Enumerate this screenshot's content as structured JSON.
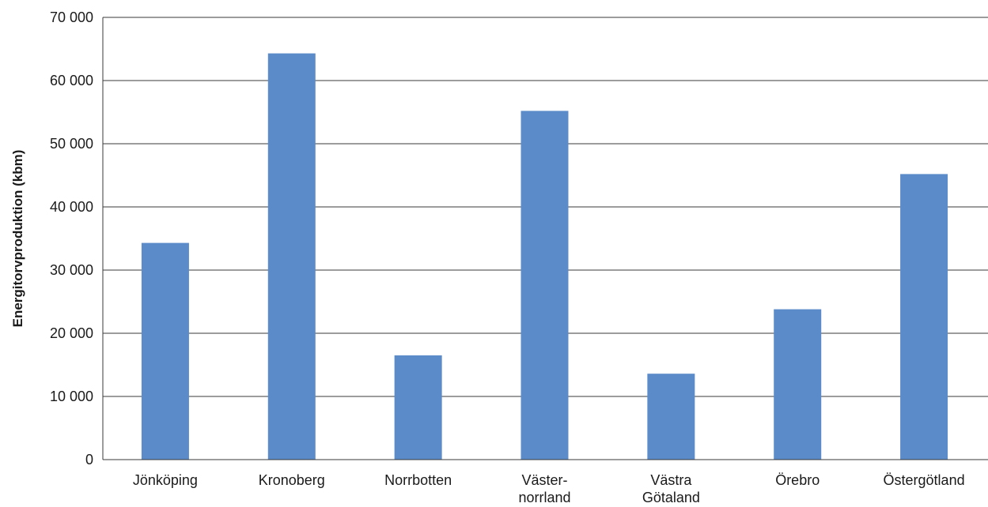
{
  "chart_data": {
    "type": "bar",
    "title": "",
    "xlabel": "",
    "ylabel": "Energitorvproduktion (kbm)",
    "ylim": [
      0,
      70000
    ],
    "yticks": [
      0,
      10000,
      20000,
      30000,
      40000,
      50000,
      60000,
      70000
    ],
    "ytick_labels": [
      "0",
      "10 000",
      "20 000",
      "30 000",
      "40 000",
      "50 000",
      "60 000",
      "70 000"
    ],
    "grid": true,
    "bar_color": "#5b8cc9",
    "categories": [
      [
        "Jönköping"
      ],
      [
        "Kronoberg"
      ],
      [
        "Norrbotten"
      ],
      [
        "Väster-",
        "norrland"
      ],
      [
        "Västra",
        "Götaland"
      ],
      [
        "Örebro"
      ],
      [
        "Östergötland"
      ]
    ],
    "values": [
      34300,
      64300,
      16500,
      55200,
      13600,
      23800,
      45200
    ]
  }
}
